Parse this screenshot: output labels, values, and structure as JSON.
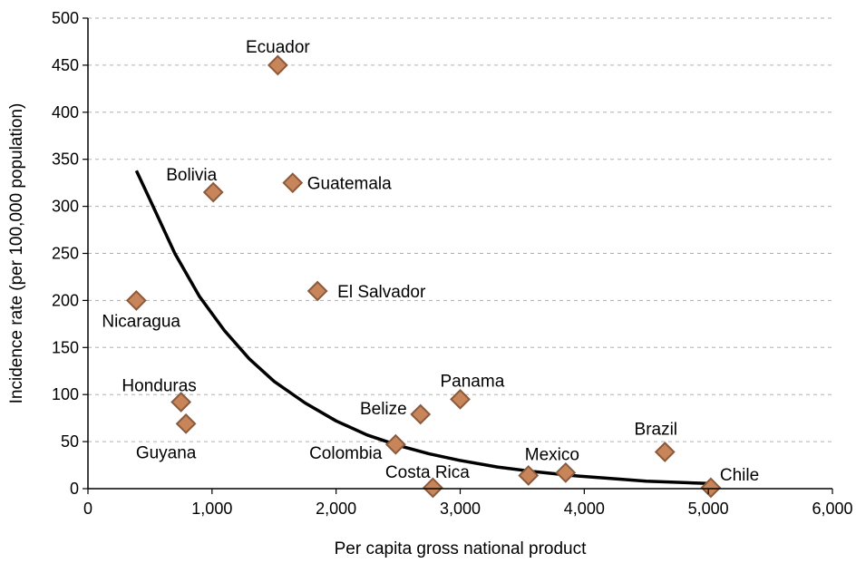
{
  "chart_data": {
    "type": "scatter",
    "xlabel": "Per capita gross national product",
    "ylabel": "Incidence rate (per 100,000 population)",
    "xlim": [
      0,
      6000
    ],
    "ylim": [
      0,
      500
    ],
    "x_ticks": [
      0,
      1000,
      2000,
      3000,
      4000,
      5000,
      6000
    ],
    "x_tick_labels": [
      "0",
      "1,000",
      "2,000",
      "3,000",
      "4,000",
      "5,000",
      "6,000"
    ],
    "y_ticks": [
      0,
      50,
      100,
      150,
      200,
      250,
      300,
      350,
      400,
      450,
      500
    ],
    "y_tick_labels": [
      "0",
      "50",
      "100",
      "150",
      "200",
      "250",
      "300",
      "350",
      "400",
      "450",
      "500"
    ],
    "grid": "horizontal dashed",
    "marker": "diamond",
    "colors": {
      "marker_fill": "#c8855a",
      "marker_stroke": "#8a5a3c",
      "grid": "#b0b0b0",
      "trend": "#000000"
    },
    "points": [
      {
        "label": "Ecuador",
        "x": 1530,
        "y": 450
      },
      {
        "label": "Bolivia",
        "x": 1010,
        "y": 315
      },
      {
        "label": "Guatemala",
        "x": 1650,
        "y": 325
      },
      {
        "label": "El Salvador",
        "x": 1850,
        "y": 210
      },
      {
        "label": "Nicaragua",
        "x": 390,
        "y": 200
      },
      {
        "label": "Honduras",
        "x": 750,
        "y": 92
      },
      {
        "label": "Guyana",
        "x": 790,
        "y": 69
      },
      {
        "label": "Panama",
        "x": 3000,
        "y": 95
      },
      {
        "label": "Belize",
        "x": 2680,
        "y": 79
      },
      {
        "label": "Colombia",
        "x": 2480,
        "y": 47
      },
      {
        "label": "Costa Rica",
        "x": 2780,
        "y": 1
      },
      {
        "label": "Mexico",
        "x": 3550,
        "y": 14
      },
      {
        "label": "Brazil",
        "x": 4650,
        "y": 39
      },
      {
        "label": "Chile",
        "x": 5020,
        "y": 1
      },
      {
        "label": "",
        "x": 3850,
        "y": 17
      }
    ],
    "trendline": {
      "x": [
        390,
        500,
        700,
        900,
        1100,
        1300,
        1500,
        1750,
        2000,
        2250,
        2500,
        2750,
        3000,
        3300,
        3600,
        3900,
        4200,
        4500,
        4800,
        5000
      ],
      "y": [
        338,
        307,
        250,
        204,
        168,
        138,
        114,
        91,
        72,
        57,
        46,
        37,
        30,
        23,
        18,
        14,
        11,
        8,
        6.5,
        5.5
      ]
    }
  }
}
